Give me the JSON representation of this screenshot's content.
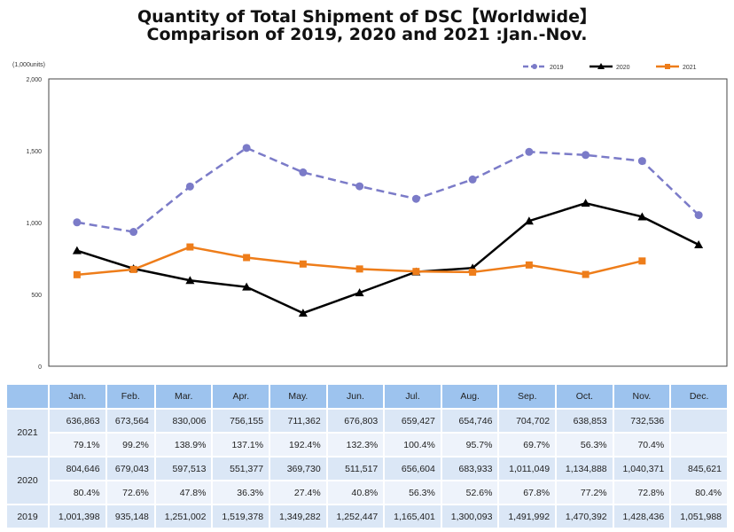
{
  "title_line1": "Quantity of Total Shipment of DSC【Worldwide】",
  "title_line2": "Comparison of 2019, 2020 and 2021 :Jan.-Nov.",
  "chart_data": {
    "type": "line",
    "unit_label": "(1,000units)",
    "categories": [
      "Jan.",
      "Feb.",
      "Mar.",
      "Apr.",
      "May.",
      "Jun.",
      "Jul.",
      "Aug.",
      "Sep.",
      "Oct.",
      "Nov.",
      "Dec."
    ],
    "ylim": [
      0,
      2000
    ],
    "yticks": [
      "0",
      "500",
      "1,000",
      "1,500",
      "2,000"
    ],
    "legend_position": "top-right",
    "series": [
      {
        "name": "2019",
        "color": "#7b7bc8",
        "dash": true,
        "marker": "circle",
        "values": [
          1001.398,
          935.148,
          1251.002,
          1519.378,
          1349.282,
          1252.447,
          1165.401,
          1300.093,
          1491.992,
          1470.392,
          1428.436,
          1051.988
        ]
      },
      {
        "name": "2020",
        "color": "#000000",
        "dash": false,
        "marker": "triangle",
        "values": [
          804.646,
          679.043,
          597.513,
          551.377,
          369.73,
          511.517,
          656.604,
          683.933,
          1011.049,
          1134.888,
          1040.371,
          845.621
        ]
      },
      {
        "name": "2021",
        "color": "#ee7d1a",
        "dash": false,
        "marker": "square",
        "values": [
          636.863,
          673.564,
          830.006,
          756.155,
          711.362,
          676.803,
          659.427,
          654.746,
          704.702,
          638.853,
          732.536,
          null
        ]
      }
    ]
  },
  "table": {
    "months": [
      "Jan.",
      "Feb.",
      "Mar.",
      "Apr.",
      "May.",
      "Jun.",
      "Jul.",
      "Aug.",
      "Sep.",
      "Oct.",
      "Nov.",
      "Dec."
    ],
    "rows": [
      {
        "year": "2021",
        "values": [
          "636,863",
          "673,564",
          "830,006",
          "756,155",
          "711,362",
          "676,803",
          "659,427",
          "654,746",
          "704,702",
          "638,853",
          "732,536",
          ""
        ],
        "ratios": [
          "79.1%",
          "99.2%",
          "138.9%",
          "137.1%",
          "192.4%",
          "132.3%",
          "100.4%",
          "95.7%",
          "69.7%",
          "56.3%",
          "70.4%",
          ""
        ]
      },
      {
        "year": "2020",
        "values": [
          "804,646",
          "679,043",
          "597,513",
          "551,377",
          "369,730",
          "511,517",
          "656,604",
          "683,933",
          "1,011,049",
          "1,134,888",
          "1,040,371",
          "845,621"
        ],
        "ratios": [
          "80.4%",
          "72.6%",
          "47.8%",
          "36.3%",
          "27.4%",
          "40.8%",
          "56.3%",
          "52.6%",
          "67.8%",
          "77.2%",
          "72.8%",
          "80.4%"
        ]
      },
      {
        "year": "2019",
        "values": [
          "1,001,398",
          "935,148",
          "1,251,002",
          "1,519,378",
          "1,349,282",
          "1,252,447",
          "1,165,401",
          "1,300,093",
          "1,491,992",
          "1,470,392",
          "1,428,436",
          "1,051,988"
        ]
      }
    ]
  }
}
